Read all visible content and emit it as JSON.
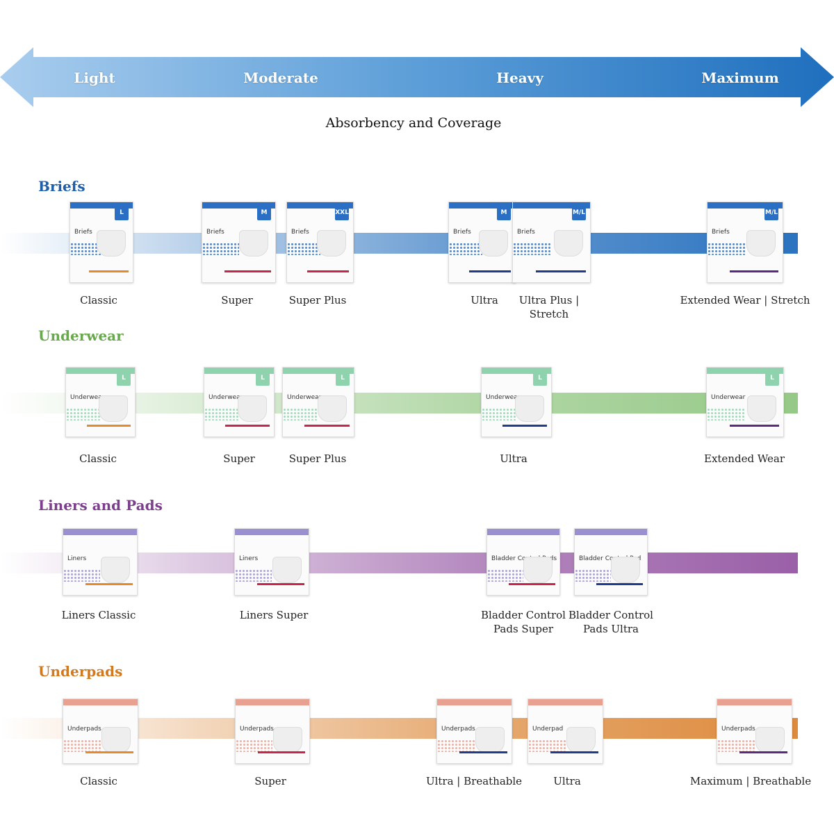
{
  "scale": {
    "levels": [
      "Light",
      "Moderate",
      "Heavy",
      "Maximum"
    ],
    "title": "Absorbency and Coverage",
    "color": "#2f7ec9"
  },
  "categories": [
    {
      "title": "Briefs",
      "color": "#1f5fa8",
      "band_color": "#2b73c0",
      "pkg_color": "#2a6fc4",
      "products": [
        {
          "label": "Classic",
          "name": "Briefs",
          "badge": "L",
          "stripe": "#e58a2a"
        },
        {
          "label": "Super",
          "name": "Briefs",
          "badge": "M",
          "stripe": "#c8254d"
        },
        {
          "label": "Super Plus",
          "name": "Briefs",
          "badge": "XXL",
          "stripe": "#c8254d"
        },
        {
          "label": "Ultra",
          "name": "Briefs",
          "badge": "M",
          "stripe": "#1f3c8c"
        },
        {
          "label": "Ultra Plus | Stretch",
          "name": "Briefs",
          "badge": "M/L",
          "stripe": "#1f3c8c"
        },
        {
          "label": "Extended Wear | Stretch",
          "name": "Briefs",
          "badge": "M/L",
          "stripe": "#5a2a80"
        }
      ]
    },
    {
      "title": "Underwear",
      "color": "#6aa84f",
      "band_color": "#96c987",
      "pkg_color": "#8ed3ad",
      "products": [
        {
          "label": "Classic",
          "name": "Underwear",
          "badge": "L",
          "stripe": "#e58a2a"
        },
        {
          "label": "Super",
          "name": "Underwear",
          "badge": "L",
          "stripe": "#c8254d"
        },
        {
          "label": "Super Plus",
          "name": "Underwear",
          "badge": "L",
          "stripe": "#c8254d"
        },
        {
          "label": "Ultra",
          "name": "Underwear",
          "badge": "L",
          "stripe": "#1f3c8c"
        },
        {
          "label": "Extended Wear",
          "name": "Underwear",
          "badge": "L",
          "stripe": "#5a2a80"
        }
      ]
    },
    {
      "title": "Liners and Pads",
      "color": "#7b3f8c",
      "band_color": "#9a5fa8",
      "pkg_color": "#9a8fd0",
      "products": [
        {
          "label": "Liners Classic",
          "name": "Liners",
          "badge": "",
          "stripe": "#e58a2a"
        },
        {
          "label": "Liners Super",
          "name": "Liners",
          "badge": "",
          "stripe": "#c8254d"
        },
        {
          "label": "Bladder Control Pads Super",
          "name": "Bladder Control Pads",
          "badge": "",
          "stripe": "#c8254d"
        },
        {
          "label": "Bladder Control Pads Ultra",
          "name": "Bladder Control Pad",
          "badge": "",
          "stripe": "#1f3c8c"
        }
      ]
    },
    {
      "title": "Underpads",
      "color": "#d07a22",
      "band_color": "#dd8a3c",
      "pkg_color": "#e8a090",
      "products": [
        {
          "label": "Classic",
          "name": "Underpads",
          "badge": "",
          "stripe": "#e58a2a"
        },
        {
          "label": "Super",
          "name": "Underpads",
          "badge": "",
          "stripe": "#c8254d"
        },
        {
          "label": "Ultra | Breathable",
          "name": "Underpads",
          "badge": "",
          "stripe": "#1f3c8c"
        },
        {
          "label": "Ultra",
          "name": "Underpad",
          "badge": "",
          "stripe": "#1f3c8c"
        },
        {
          "label": "Maximum | Breathable",
          "name": "Underpads",
          "badge": "",
          "stripe": "#5a2a80"
        }
      ]
    }
  ]
}
